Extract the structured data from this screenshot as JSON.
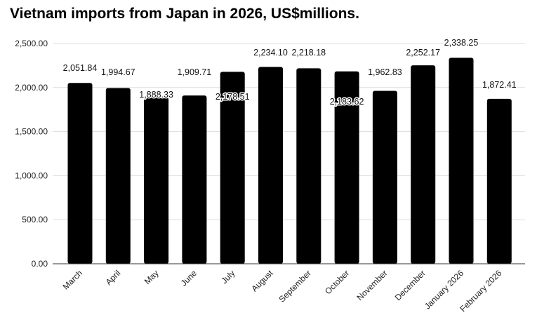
{
  "chart_data": {
    "type": "bar",
    "title": "Vietnam imports from Japan in 2026, US$millions.",
    "xlabel": "",
    "ylabel": "",
    "ylim": [
      0,
      2500
    ],
    "yticks": [
      "0.00",
      "500.00",
      "1,000.00",
      "1,500.00",
      "2,000.00",
      "2,500.00"
    ],
    "categories": [
      "March",
      "April",
      "May",
      "June",
      "July",
      "August",
      "September",
      "October",
      "November",
      "December",
      "January 2026",
      "February 2026"
    ],
    "values": [
      2051.84,
      1994.67,
      1888.33,
      1909.71,
      2178.51,
      2234.1,
      2218.18,
      2183.62,
      1962.83,
      2252.17,
      2338.25,
      1872.41
    ],
    "data_labels": [
      "2,051.84",
      "1,994.67",
      "1,888.33",
      "1,909.71",
      "2,178.51",
      "2,234.10",
      "2,218.18",
      "2,183.62",
      "1,962.83",
      "2,252.17",
      "2,338.25",
      "1,872.41"
    ],
    "bar_color": "#000000",
    "grid": true,
    "legend": "none"
  }
}
